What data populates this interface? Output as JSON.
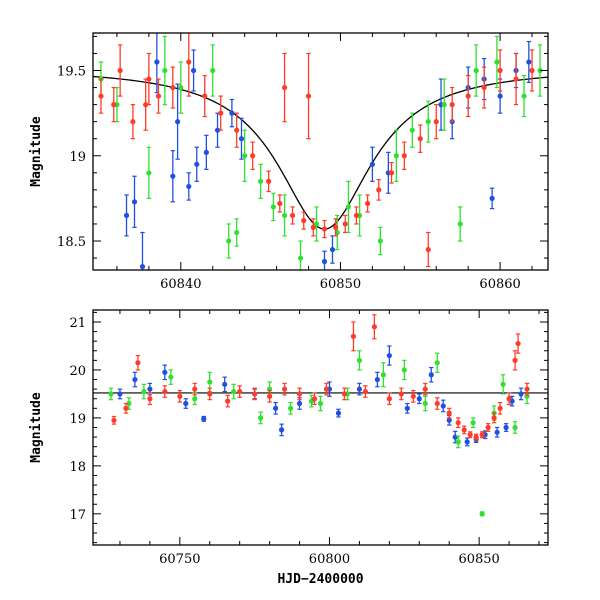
{
  "chart_data": [
    {
      "type": "scatter",
      "panel": "top",
      "xlabel": "",
      "ylabel": "Magnitude",
      "xlim": [
        60834.5,
        60863
      ],
      "ylim": [
        19.72,
        18.33
      ],
      "y_inverted": true,
      "x_ticks": [
        60840,
        60850,
        60860
      ],
      "y_ticks": [
        18.5,
        19,
        19.5
      ],
      "series": [
        {
          "color": "#2050e0",
          "points": [
            [
              60836.6,
              18.65,
              0.12
            ],
            [
              60837.1,
              18.73,
              0.15
            ],
            [
              60837.6,
              18.35,
              0.2
            ],
            [
              60839.5,
              18.88,
              0.15
            ],
            [
              60839.8,
              19.2,
              0.22
            ],
            [
              60840.5,
              18.82,
              0.08
            ],
            [
              60841.0,
              18.95,
              0.1
            ],
            [
              60841.6,
              19.02,
              0.1
            ],
            [
              60842.3,
              19.15,
              0.1
            ],
            [
              60843.2,
              19.25,
              0.08
            ],
            [
              60843.8,
              19.1,
              0.12
            ],
            [
              60849.0,
              18.38,
              0.06
            ],
            [
              60849.5,
              18.45,
              0.08
            ],
            [
              60852.0,
              18.95,
              0.1
            ],
            [
              60853.0,
              18.9,
              0.12
            ],
            [
              60857.0,
              19.2,
              0.1
            ],
            [
              60858.0,
              19.4,
              0.12
            ],
            [
              60859.0,
              19.45,
              0.12
            ],
            [
              60859.5,
              18.75,
              0.06
            ],
            [
              60860.0,
              19.35,
              0.1
            ],
            [
              60861.0,
              19.5,
              0.1
            ],
            [
              60861.8,
              19.55,
              0.12
            ],
            [
              60856.3,
              19.3,
              0.15
            ],
            [
              60840.8,
              19.5,
              0.12
            ],
            [
              60838.5,
              19.55,
              0.18
            ]
          ]
        },
        {
          "color": "#30e030",
          "points": [
            [
              60835.0,
              19.45,
              0.1
            ],
            [
              60836.0,
              19.3,
              0.1
            ],
            [
              60838.0,
              18.9,
              0.15
            ],
            [
              60839.0,
              19.5,
              0.2
            ],
            [
              60840.0,
              19.4,
              0.15
            ],
            [
              60842.0,
              19.5,
              0.15
            ],
            [
              60843.0,
              18.5,
              0.1
            ],
            [
              60843.5,
              18.55,
              0.08
            ],
            [
              60844.0,
              19.0,
              0.15
            ],
            [
              60845.0,
              18.85,
              0.1
            ],
            [
              60845.8,
              18.7,
              0.08
            ],
            [
              60846.5,
              18.65,
              0.12
            ],
            [
              60847.5,
              18.4,
              0.1
            ],
            [
              60848.5,
              18.6,
              0.1
            ],
            [
              60849.8,
              18.55,
              0.1
            ],
            [
              60850.5,
              18.7,
              0.15
            ],
            [
              60851.2,
              18.65,
              0.12
            ],
            [
              60852.5,
              18.5,
              0.08
            ],
            [
              60853.5,
              19.0,
              0.15
            ],
            [
              60854.5,
              19.15,
              0.1
            ],
            [
              60855.5,
              19.2,
              0.12
            ],
            [
              60856.5,
              19.3,
              0.15
            ],
            [
              60857.5,
              18.6,
              0.1
            ],
            [
              60858.5,
              19.5,
              0.15
            ],
            [
              60859.8,
              19.55,
              0.15
            ],
            [
              60861.5,
              19.35,
              0.12
            ],
            [
              60862.5,
              19.5,
              0.15
            ]
          ]
        },
        {
          "color": "#ff3c28",
          "points": [
            [
              60835.0,
              19.35,
              0.1
            ],
            [
              60835.8,
              19.3,
              0.1
            ],
            [
              60836.2,
              19.5,
              0.15
            ],
            [
              60837.0,
              19.2,
              0.1
            ],
            [
              60837.8,
              19.3,
              0.15
            ],
            [
              60838.0,
              19.45,
              0.15
            ],
            [
              60838.6,
              19.35,
              0.1
            ],
            [
              60839.5,
              19.4,
              0.12
            ],
            [
              60840.5,
              19.55,
              0.2
            ],
            [
              60841.5,
              19.35,
              0.12
            ],
            [
              60842.5,
              19.25,
              0.1
            ],
            [
              60843.5,
              19.15,
              0.1
            ],
            [
              60844.5,
              19.0,
              0.08
            ],
            [
              60845.5,
              18.85,
              0.06
            ],
            [
              60846.2,
              18.72,
              0.05
            ],
            [
              60847.0,
              18.65,
              0.05
            ],
            [
              60847.7,
              18.62,
              0.05
            ],
            [
              60848.3,
              18.58,
              0.05
            ],
            [
              60849.0,
              18.57,
              0.05
            ],
            [
              60849.7,
              18.58,
              0.05
            ],
            [
              60850.3,
              18.6,
              0.05
            ],
            [
              60851.0,
              18.65,
              0.05
            ],
            [
              60851.7,
              18.72,
              0.05
            ],
            [
              60852.4,
              18.8,
              0.06
            ],
            [
              60853.2,
              18.9,
              0.06
            ],
            [
              60854.0,
              19.0,
              0.08
            ],
            [
              60855.0,
              19.1,
              0.08
            ],
            [
              60856.0,
              19.2,
              0.1
            ],
            [
              60857.0,
              19.3,
              0.1
            ],
            [
              60858.0,
              19.35,
              0.12
            ],
            [
              60859.0,
              19.4,
              0.12
            ],
            [
              60860.0,
              19.5,
              0.12
            ],
            [
              60861.0,
              19.45,
              0.15
            ],
            [
              60862.0,
              19.5,
              0.12
            ],
            [
              60855.5,
              18.45,
              0.1
            ],
            [
              60846.5,
              19.4,
              0.2
            ],
            [
              60848.0,
              19.35,
              0.25
            ]
          ]
        }
      ],
      "model_curve": {
        "baseline": 19.52,
        "peak_time": 60849.0,
        "amplitude": 0.95,
        "width": 3.6
      }
    },
    {
      "type": "scatter",
      "panel": "bottom",
      "xlabel": "HJD−2400000",
      "ylabel": "Magnitude",
      "xlim": [
        60721,
        60873
      ],
      "ylim": [
        21.25,
        16.35
      ],
      "y_inverted": true,
      "x_ticks": [
        60750,
        60800,
        60850
      ],
      "y_ticks": [
        17,
        18,
        19,
        20,
        21
      ],
      "baseline": 19.52,
      "series": [
        {
          "color": "#2050e0",
          "points": [
            [
              60730,
              19.5,
              0.1
            ],
            [
              60735,
              19.8,
              0.15
            ],
            [
              60740,
              19.6,
              0.12
            ],
            [
              60745,
              19.95,
              0.15
            ],
            [
              60752,
              19.3,
              0.1
            ],
            [
              60758,
              18.98,
              0.05
            ],
            [
              60765,
              19.7,
              0.15
            ],
            [
              60775,
              19.5,
              0.1
            ],
            [
              60782,
              19.2,
              0.12
            ],
            [
              60784,
              18.75,
              0.12
            ],
            [
              60790,
              19.3,
              0.12
            ],
            [
              60800,
              19.6,
              0.15
            ],
            [
              60803,
              19.1,
              0.08
            ],
            [
              60810,
              19.6,
              0.12
            ],
            [
              60816,
              19.8,
              0.15
            ],
            [
              60820,
              20.3,
              0.2
            ],
            [
              60826,
              19.2,
              0.1
            ],
            [
              60830,
              19.4,
              0.1
            ],
            [
              60834,
              19.9,
              0.15
            ],
            [
              60838,
              19.25,
              0.12
            ],
            [
              60840,
              18.95,
              0.1
            ],
            [
              60842,
              18.6,
              0.12
            ],
            [
              60846,
              18.5,
              0.08
            ],
            [
              60849,
              18.55,
              0.06
            ],
            [
              60852,
              18.65,
              0.08
            ],
            [
              60856,
              18.7,
              0.1
            ],
            [
              60859,
              18.8,
              0.08
            ],
            [
              60861,
              19.35,
              0.1
            ],
            [
              60864,
              19.5,
              0.12
            ]
          ]
        },
        {
          "color": "#30e030",
          "points": [
            [
              60727,
              19.5,
              0.12
            ],
            [
              60733,
              19.3,
              0.12
            ],
            [
              60738,
              19.55,
              0.15
            ],
            [
              60747,
              19.85,
              0.15
            ],
            [
              60755,
              19.4,
              0.12
            ],
            [
              60760,
              19.75,
              0.2
            ],
            [
              60768,
              19.55,
              0.15
            ],
            [
              60777,
              19.0,
              0.12
            ],
            [
              60780,
              19.6,
              0.15
            ],
            [
              60787,
              19.2,
              0.12
            ],
            [
              60794,
              19.35,
              0.12
            ],
            [
              60797,
              19.3,
              0.15
            ],
            [
              60806,
              19.5,
              0.12
            ],
            [
              60810,
              20.2,
              0.2
            ],
            [
              60818,
              19.9,
              0.25
            ],
            [
              60825,
              20.0,
              0.2
            ],
            [
              60832,
              19.3,
              0.15
            ],
            [
              60836,
              20.15,
              0.2
            ],
            [
              60843,
              18.5,
              0.12
            ],
            [
              60848,
              18.9,
              0.1
            ],
            [
              60851,
              17.0,
              0.04
            ],
            [
              60855,
              19.1,
              0.15
            ],
            [
              60858,
              19.7,
              0.2
            ],
            [
              60862,
              18.8,
              0.12
            ],
            [
              60866,
              19.45,
              0.15
            ]
          ]
        },
        {
          "color": "#ff3c28",
          "points": [
            [
              60728,
              18.95,
              0.08
            ],
            [
              60732,
              19.2,
              0.1
            ],
            [
              60736,
              20.15,
              0.15
            ],
            [
              60740,
              19.4,
              0.12
            ],
            [
              60745,
              19.55,
              0.12
            ],
            [
              60750,
              19.45,
              0.12
            ],
            [
              60755,
              19.6,
              0.12
            ],
            [
              60760,
              19.5,
              0.12
            ],
            [
              60766,
              19.35,
              0.12
            ],
            [
              60770,
              19.55,
              0.12
            ],
            [
              60775,
              19.5,
              0.12
            ],
            [
              60780,
              19.45,
              0.12
            ],
            [
              60785,
              19.6,
              0.12
            ],
            [
              60790,
              19.5,
              0.12
            ],
            [
              60795,
              19.4,
              0.12
            ],
            [
              60799,
              19.6,
              0.12
            ],
            [
              60805,
              19.5,
              0.12
            ],
            [
              60808,
              20.7,
              0.3
            ],
            [
              60812,
              19.55,
              0.12
            ],
            [
              60815,
              20.9,
              0.25
            ],
            [
              60820,
              19.4,
              0.12
            ],
            [
              60824,
              19.5,
              0.12
            ],
            [
              60828,
              19.45,
              0.12
            ],
            [
              60832,
              19.6,
              0.12
            ],
            [
              60836,
              19.3,
              0.12
            ],
            [
              60840,
              19.1,
              0.1
            ],
            [
              60843,
              18.9,
              0.1
            ],
            [
              60845,
              18.75,
              0.08
            ],
            [
              60847,
              18.65,
              0.06
            ],
            [
              60849,
              18.6,
              0.06
            ],
            [
              60851,
              18.65,
              0.06
            ],
            [
              60853,
              18.8,
              0.08
            ],
            [
              60855,
              19.0,
              0.1
            ],
            [
              60857,
              19.2,
              0.12
            ],
            [
              60860,
              19.4,
              0.12
            ],
            [
              60862,
              20.2,
              0.2
            ],
            [
              60863,
              20.55,
              0.2
            ],
            [
              60866,
              19.6,
              0.12
            ]
          ]
        }
      ]
    }
  ]
}
